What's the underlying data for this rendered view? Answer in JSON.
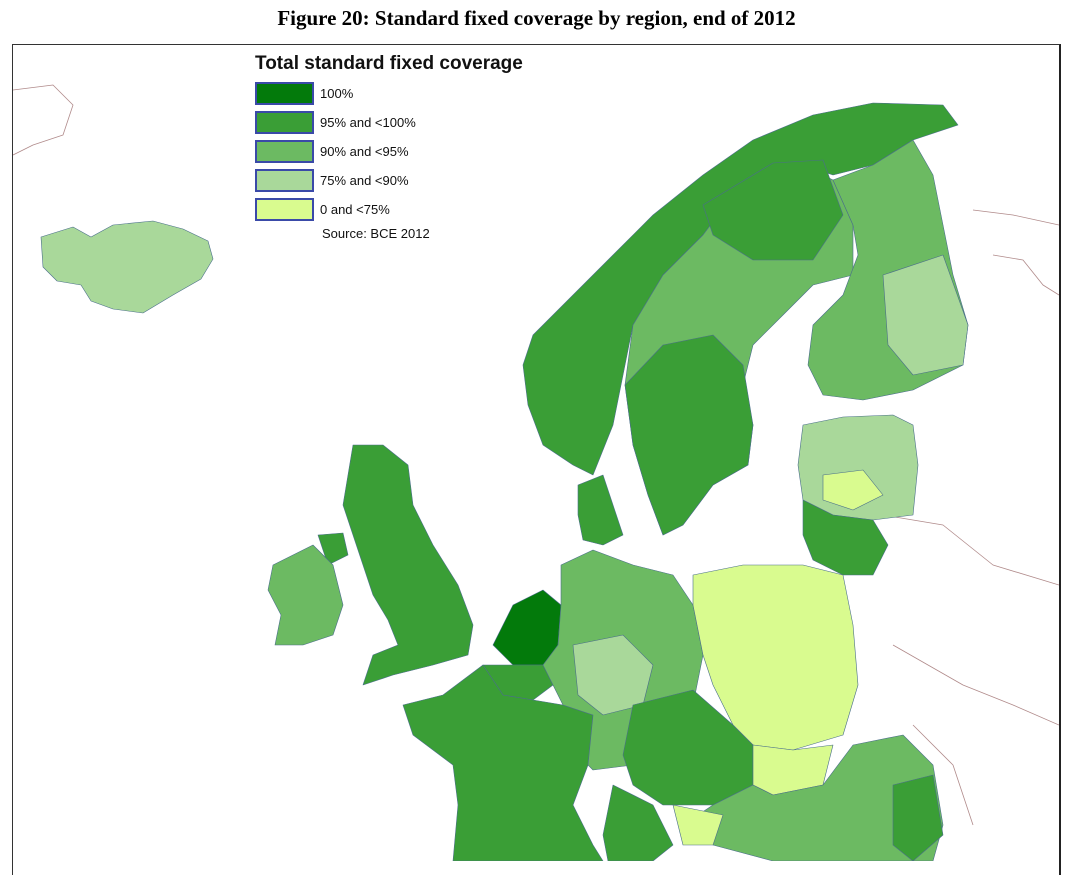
{
  "figure_title": "Figure 20: Standard fixed coverage by region, end of 2012",
  "legend": {
    "title": "Total standard fixed coverage",
    "items": [
      {
        "label": "100%",
        "color": "#037a0b"
      },
      {
        "label": "95% and <100%",
        "color": "#3a9e36"
      },
      {
        "label": "90% and <95%",
        "color": "#6cba62"
      },
      {
        "label": "75% and <90%",
        "color": "#a9d89a"
      },
      {
        "label": "0 and <75%",
        "color": "#d9fb8f"
      }
    ],
    "source": "Source: BCE 2012"
  },
  "regions": [
    {
      "name": "Iceland",
      "class": "75% and <90%"
    },
    {
      "name": "Norway",
      "class": "95% and <100%"
    },
    {
      "name": "Sweden",
      "class": "95% and <100%"
    },
    {
      "name": "Finland",
      "class": "90% and <95%"
    },
    {
      "name": "United Kingdom",
      "class": "95% and <100%"
    },
    {
      "name": "Ireland",
      "class": "90% and <95%"
    },
    {
      "name": "France",
      "class": "95% and <100%"
    },
    {
      "name": "Netherlands",
      "class": "100%"
    },
    {
      "name": "Germany",
      "class": "90% and <95%"
    },
    {
      "name": "Denmark",
      "class": "95% and <100%"
    },
    {
      "name": "Poland",
      "class": "0 and <75%"
    },
    {
      "name": "Baltic states",
      "class": "75% and <90%"
    },
    {
      "name": "Lithuania",
      "class": "95% and <100%"
    },
    {
      "name": "Czech Republic / Austria",
      "class": "95% and <100%"
    },
    {
      "name": "Hungary / Romania",
      "class": "90% and <95%"
    },
    {
      "name": "Slovakia",
      "class": "0 and <75%"
    }
  ]
}
